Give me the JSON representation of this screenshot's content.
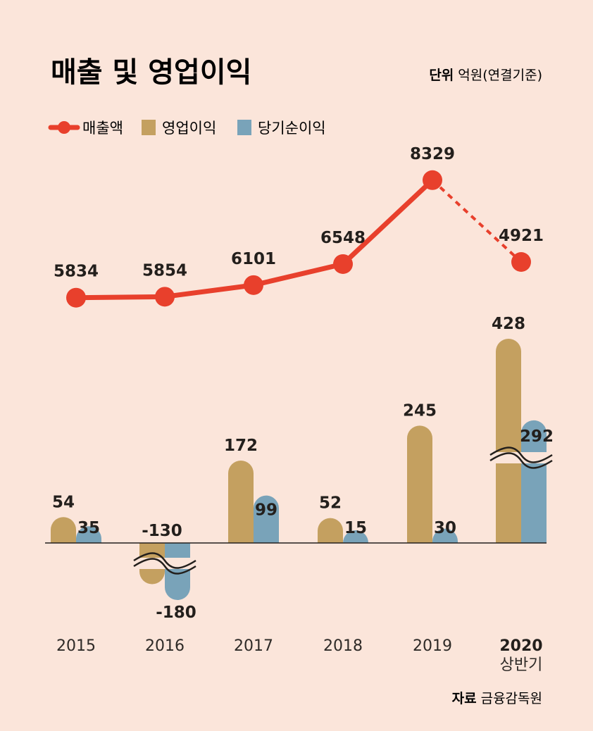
{
  "title": "매출 및 영업이익",
  "unit": {
    "label": "단위",
    "value": "억원(연결기준)"
  },
  "source": {
    "label": "자료",
    "value": "금융감독원"
  },
  "colors": {
    "sales": "#e8402c",
    "operating": "#c4a060",
    "net": "#79a3b9",
    "background": "#fbe5da"
  },
  "chart_data": {
    "type": "bar",
    "categories": [
      "2015",
      "2016",
      "2017",
      "2018",
      "2019",
      "2020"
    ],
    "category_sublabels": [
      "",
      "",
      "",
      "",
      "",
      "상반기"
    ],
    "series": [
      {
        "name": "매출액",
        "type": "line",
        "values": [
          5834,
          5854,
          6101,
          6548,
          8329,
          4921
        ]
      },
      {
        "name": "영업이익",
        "type": "bar",
        "values": [
          54,
          -130,
          172,
          52,
          245,
          428
        ]
      },
      {
        "name": "당기순이익",
        "type": "bar",
        "values": [
          35,
          -180,
          99,
          15,
          30,
          292
        ]
      }
    ],
    "value_labels": {
      "매출액": [
        "5834",
        "5854",
        "6101",
        "6548",
        "8329",
        "4921"
      ],
      "영업이익": [
        "54",
        "-130",
        "172",
        "52",
        "245",
        "428"
      ],
      "당기순이익": [
        "35",
        "-180",
        "99",
        "15",
        "30",
        "292"
      ]
    },
    "notes": {
      "axis_breaks": [
        "2016",
        "2020"
      ],
      "dashed_last_segment": true
    },
    "grid": false,
    "legend": "top-left"
  }
}
